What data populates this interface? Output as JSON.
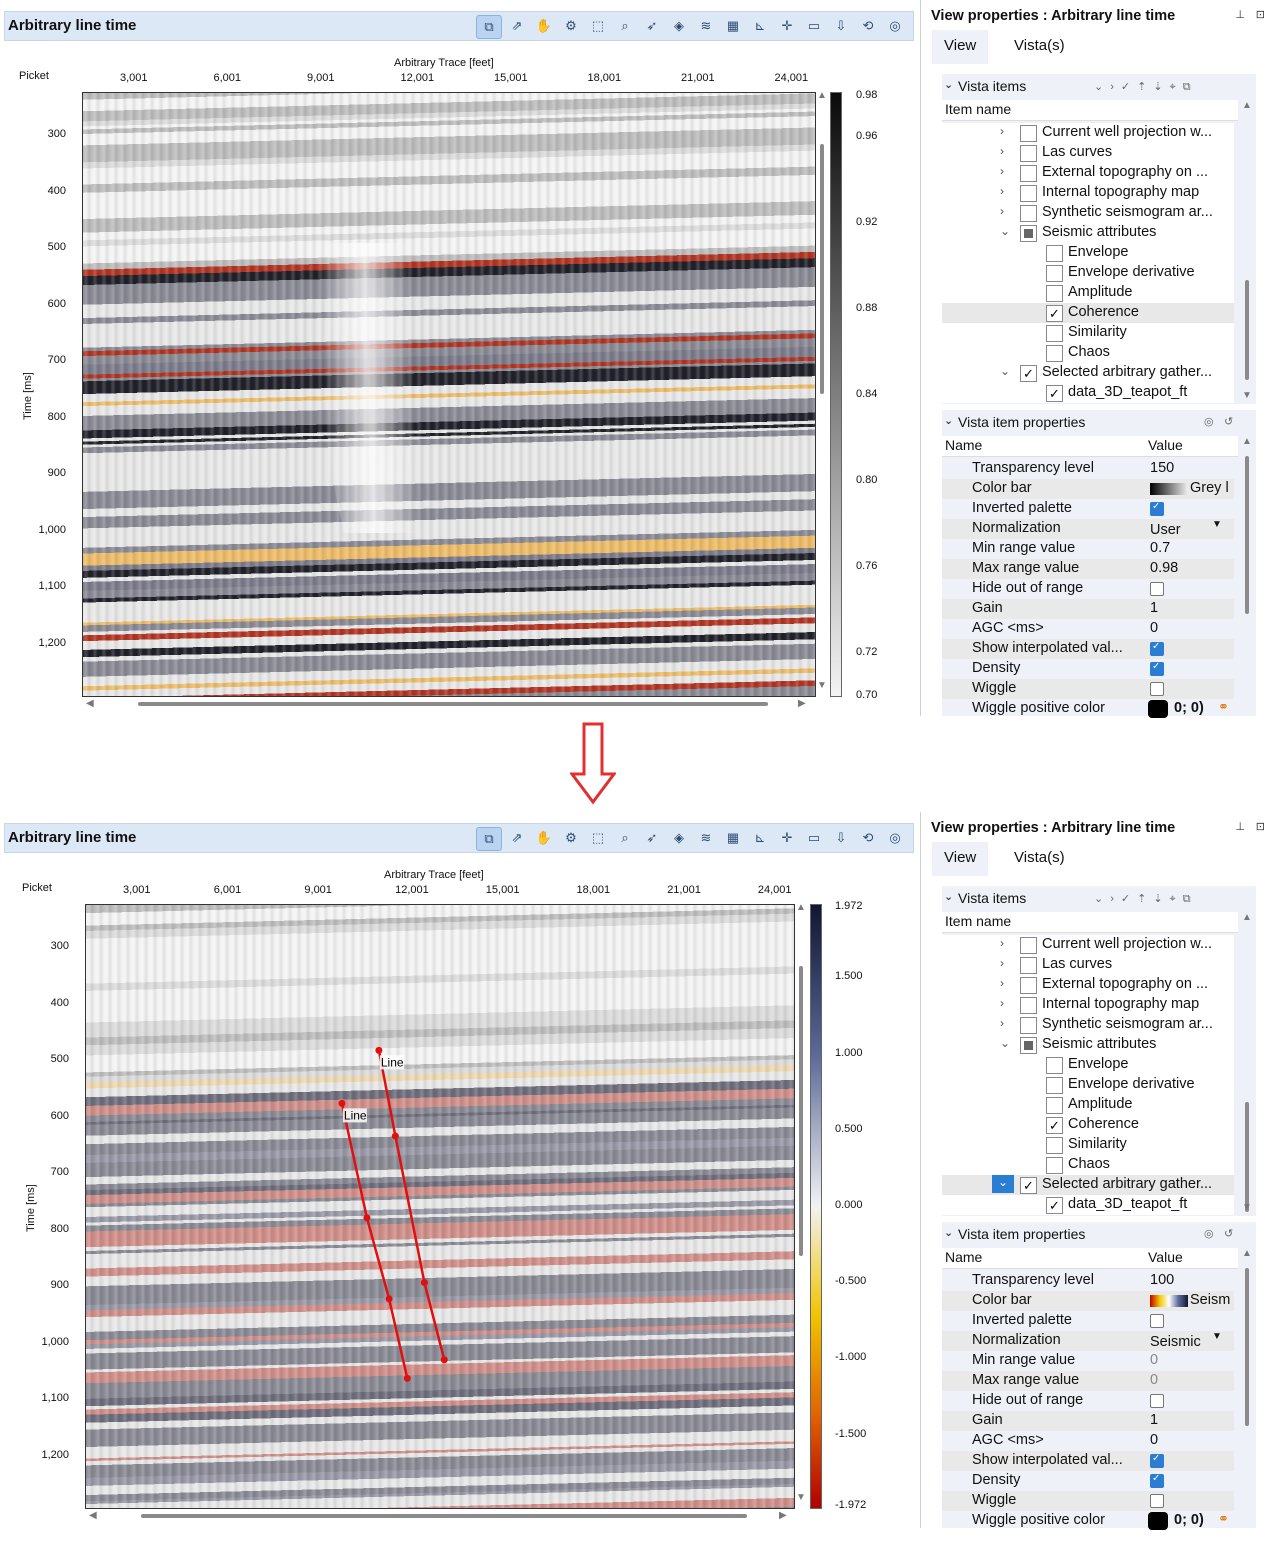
{
  "panels": [
    {
      "window_title": "Arbitrary line time",
      "x_axis_title": "Arbitrary Trace [feet]",
      "picket_label": "Picket",
      "y_axis_title": "Time [ms]",
      "x_ticks": [
        "3,001",
        "6,001",
        "9,001",
        "12,001",
        "15,001",
        "18,001",
        "21,001",
        "24,001"
      ],
      "y_ticks": [
        "300",
        "400",
        "500",
        "600",
        "700",
        "800",
        "900",
        "1,000",
        "1,100",
        "1,200"
      ],
      "colorbar_ticks": [
        "0.98",
        "0.96",
        "0.92",
        "0.88",
        "0.84",
        "0.80",
        "0.76",
        "0.72",
        "0.70"
      ],
      "colorbar_name": "Grey",
      "line_labels": []
    },
    {
      "window_title": "Arbitrary line time",
      "x_axis_title": "Arbitrary Trace [feet]",
      "picket_label": "Picket",
      "y_axis_title": "Time [ms]",
      "x_ticks": [
        "3,001",
        "6,001",
        "9,001",
        "12,001",
        "15,001",
        "18,001",
        "21,001",
        "24,001"
      ],
      "y_ticks": [
        "300",
        "400",
        "500",
        "600",
        "700",
        "800",
        "900",
        "1,000",
        "1,100",
        "1,200"
      ],
      "colorbar_ticks": [
        "1.972",
        "1.500",
        "1.000",
        "0.500",
        "0.000",
        "-0.500",
        "-1.000",
        "-1.500",
        "-1.972"
      ],
      "colorbar_name": "Seismic",
      "line_labels": [
        "Line",
        "Line"
      ]
    }
  ],
  "side": {
    "title": "View properties : Arbitrary line time",
    "tabs": [
      "View",
      "Vista(s)"
    ],
    "vista_items_label": "Vista items",
    "item_name_header": "Item name",
    "tree": [
      {
        "label": "Current well projection w...",
        "state": "off",
        "indent": 0,
        "chev": "›"
      },
      {
        "label": "Las curves",
        "state": "off",
        "indent": 0,
        "chev": "›"
      },
      {
        "label": "External topography on ...",
        "state": "off",
        "indent": 0,
        "chev": "›"
      },
      {
        "label": "Internal topography map",
        "state": "off",
        "indent": 0,
        "chev": "›"
      },
      {
        "label": "Synthetic seismogram ar...",
        "state": "off",
        "indent": 0,
        "chev": "›"
      },
      {
        "label": "Seismic attributes",
        "state": "mixed",
        "indent": 0,
        "chev": "⌄"
      },
      {
        "label": "Envelope",
        "state": "off",
        "indent": 1,
        "chev": ""
      },
      {
        "label": "Envelope derivative",
        "state": "off",
        "indent": 1,
        "chev": ""
      },
      {
        "label": "Amplitude",
        "state": "off",
        "indent": 1,
        "chev": ""
      },
      {
        "label": "Coherence",
        "state": "on",
        "indent": 1,
        "chev": ""
      },
      {
        "label": "Similarity",
        "state": "off",
        "indent": 1,
        "chev": ""
      },
      {
        "label": "Chaos",
        "state": "off",
        "indent": 1,
        "chev": ""
      },
      {
        "label": "Selected arbitrary gather...",
        "state": "on",
        "indent": 0,
        "chev": "⌄"
      },
      {
        "label": "data_3D_teapot_ft",
        "state": "on",
        "indent": 1,
        "chev": ""
      }
    ],
    "props_label": "Vista item properties",
    "name_header": "Name",
    "value_header": "Value",
    "prop_names": [
      "Transparency level",
      "Color bar",
      "Inverted palette",
      "Normalization",
      "Min range value",
      "Max range value",
      "Hide out of range",
      "Gain",
      "AGC <ms>",
      "Show interpolated val...",
      "Density",
      "Wiggle",
      "Wiggle positive color"
    ],
    "states": [
      {
        "transparency": "150",
        "colorbar": "Grey l",
        "inverted": true,
        "normalization": "User",
        "min": "0.7",
        "max": "0.98",
        "hide": false,
        "gain": "1",
        "agc": "0",
        "interp": true,
        "density": true,
        "wiggle": false,
        "wiggle_color": "0; 0)"
      },
      {
        "transparency": "100",
        "colorbar": "Seism",
        "inverted": false,
        "normalization": "Seismic",
        "min": "0",
        "max": "0",
        "hide": false,
        "gain": "1",
        "agc": "0",
        "interp": true,
        "density": true,
        "wiggle": false,
        "wiggle_color": "0; 0)"
      }
    ]
  },
  "toolbar_icons": [
    "layers-pick-icon",
    "export-icon",
    "pan-hand-icon",
    "settings-gear-icon",
    "select-icon",
    "zoom-icon",
    "pointer-icon",
    "stack-icon",
    "wiggle-icon",
    "grid-icon",
    "axis-icon",
    "crosshair-icon",
    "comment-icon",
    "save-icon",
    "fit-icon",
    "compass-icon"
  ],
  "fault_lines": [
    {
      "label": "Line",
      "points": [
        [
          9001,
          582
        ],
        [
          9881,
          785
        ],
        [
          10661,
          929
        ],
        [
          11301,
          1070
        ]
      ]
    },
    {
      "label": "Line",
      "points": [
        [
          10301,
          488
        ],
        [
          10881,
          640
        ],
        [
          11901,
          900
        ],
        [
          12601,
          1037
        ]
      ]
    }
  ],
  "colors": {
    "titlebar_bg": "#dde8f6",
    "accent": "#2b7cd3",
    "fault_line": "#e01010",
    "arrow": "#e03030"
  }
}
